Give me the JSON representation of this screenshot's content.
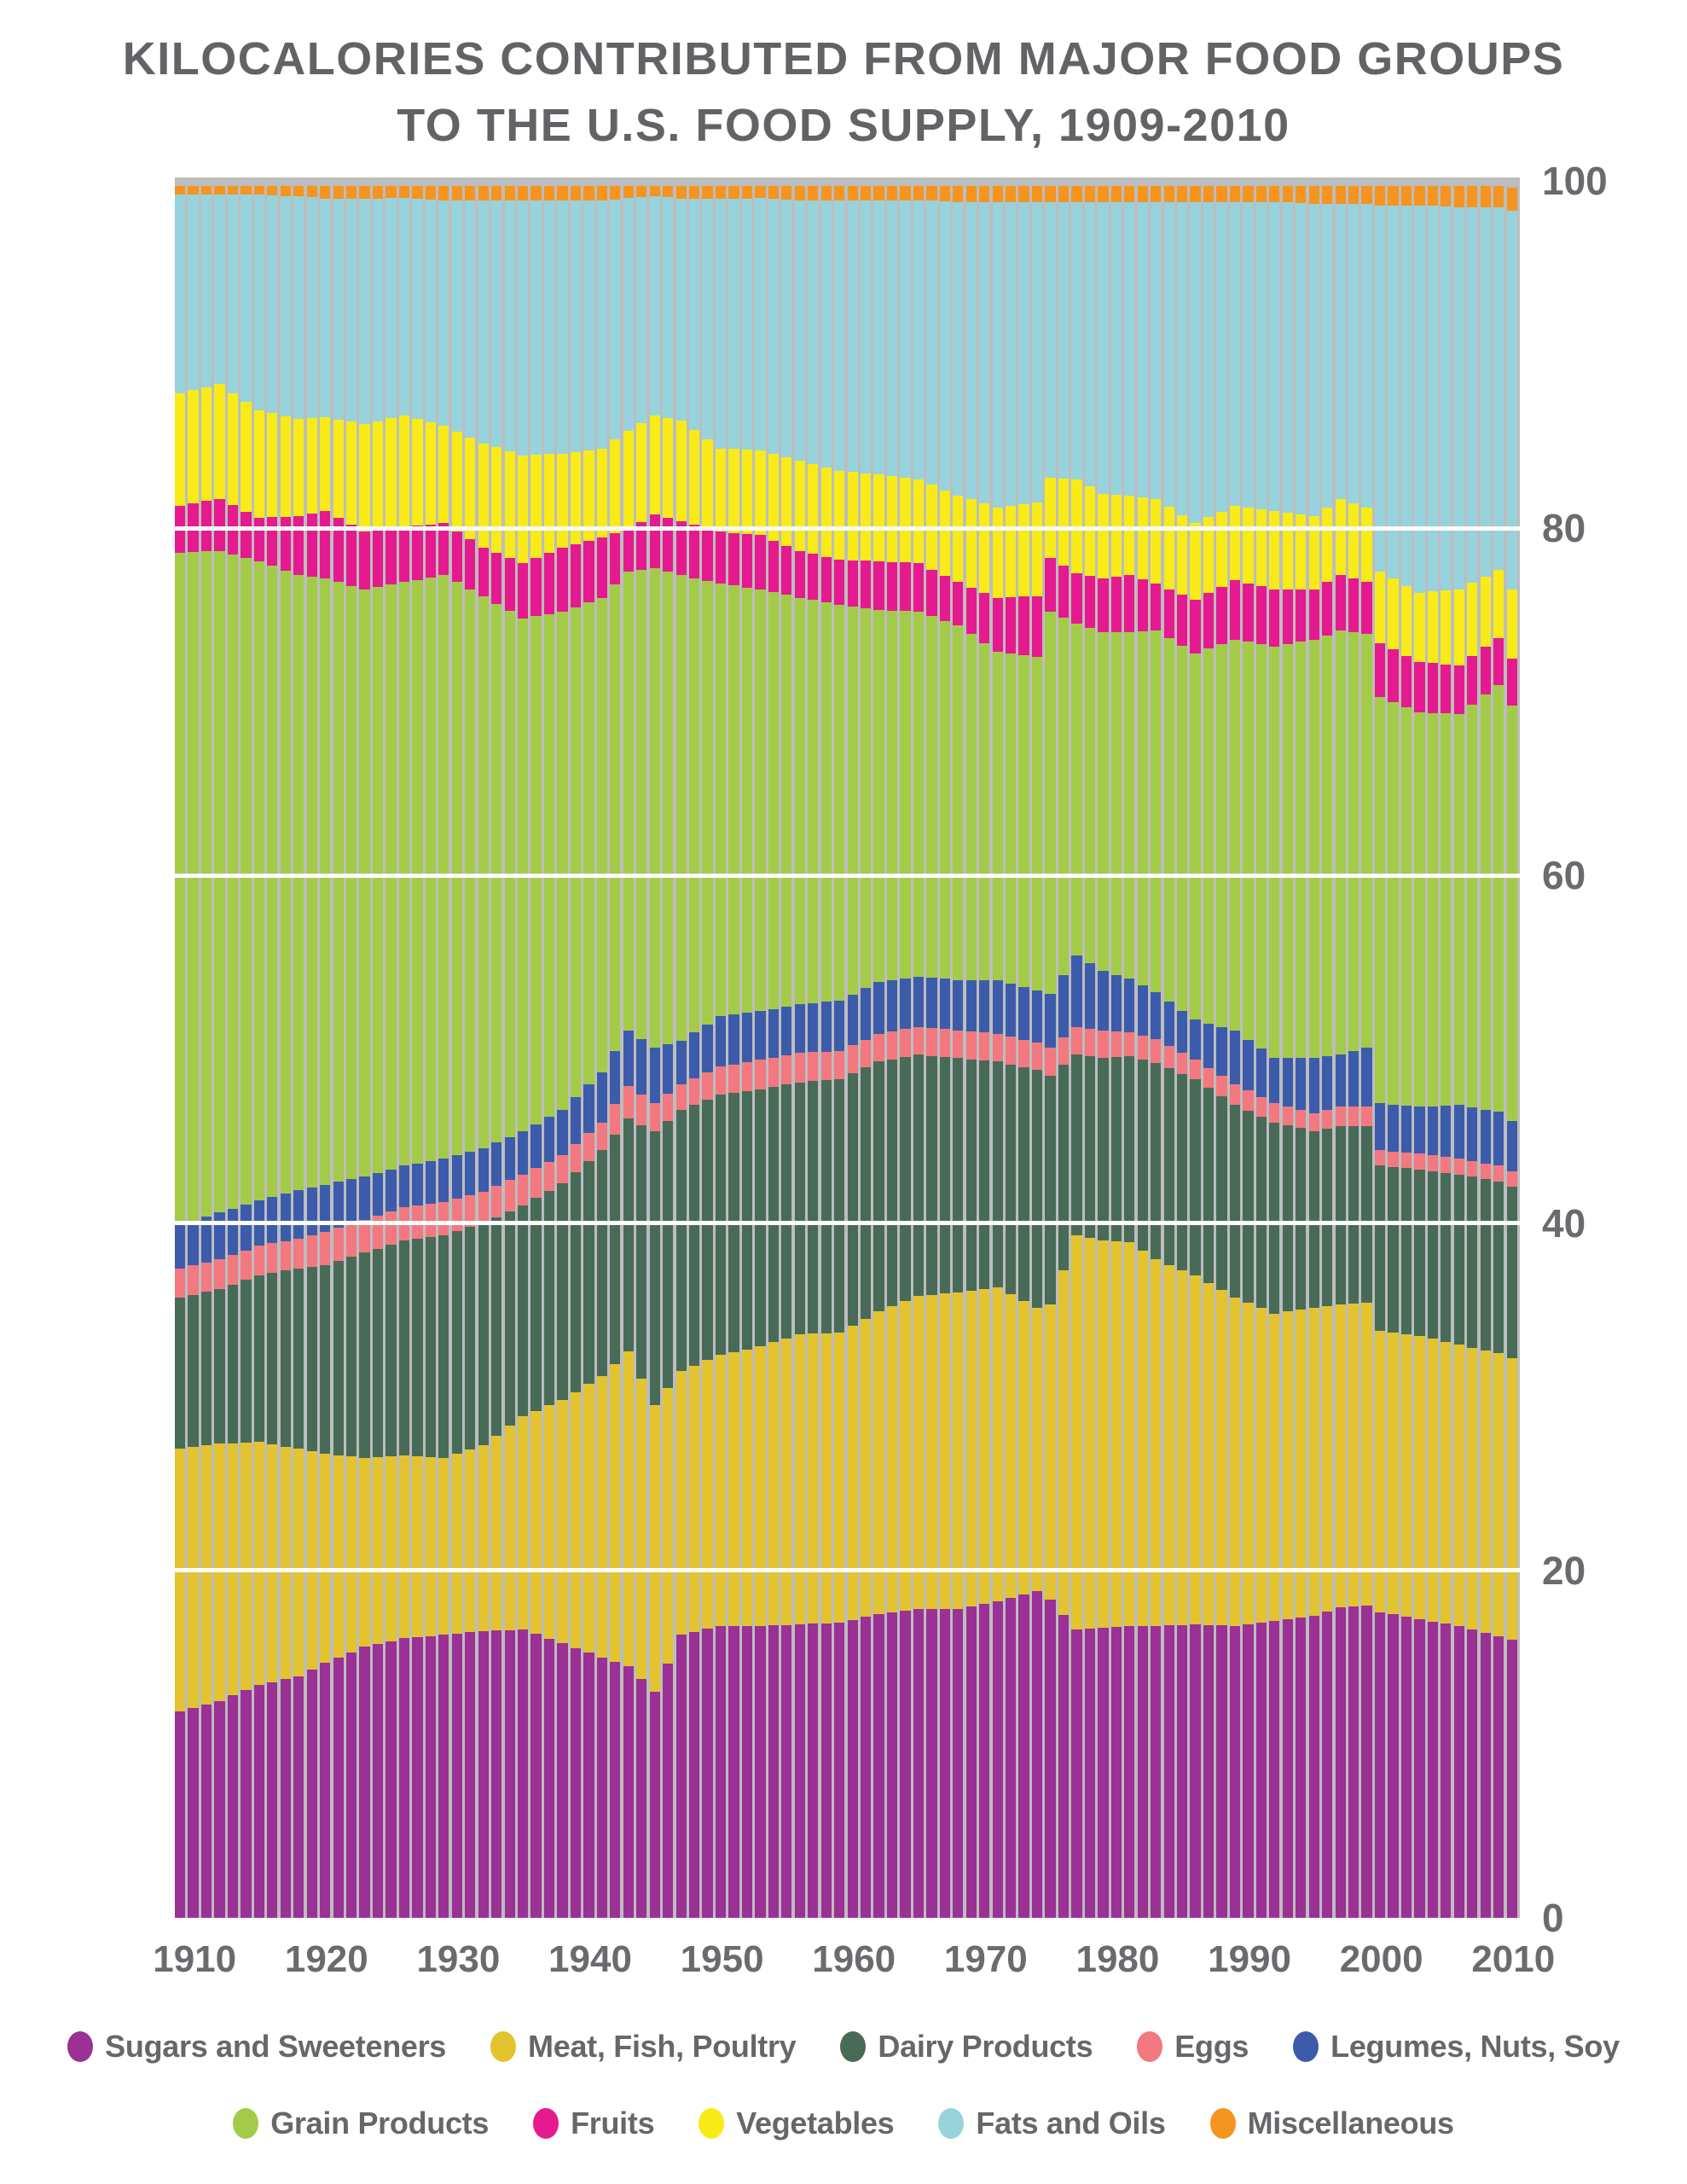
{
  "title": {
    "line1": "KILOCALORIES CONTRIBUTED FROM MAJOR FOOD GROUPS",
    "line2": "TO THE U.S. FOOD SUPPLY, 1909-2010"
  },
  "colors": {
    "plot_background": "#bcbdbf",
    "gridline": "#ffffff",
    "title_text": "#626366",
    "axis_text": "#6a6b6e",
    "legend_text": "#66676a"
  },
  "chart_data": {
    "type": "bar",
    "variant": "100-percent-stacked-yearly-bars",
    "title": "KILOCALORIES CONTRIBUTED FROM MAJOR FOOD GROUPS TO THE U.S. FOOD SUPPLY, 1909-2010",
    "xlabel": "",
    "ylabel": "",
    "x_range": [
      1909,
      2010
    ],
    "x_tick_years": [
      1910,
      1920,
      1930,
      1940,
      1950,
      1960,
      1970,
      1980,
      1990,
      2000,
      2010
    ],
    "y_ticks": [
      0,
      20,
      40,
      60,
      80,
      100
    ],
    "y_gridlines": [
      20,
      40,
      60,
      80
    ],
    "ylim": [
      0,
      100.2
    ],
    "legend_rows": [
      [
        0,
        1,
        2,
        3,
        4
      ],
      [
        5,
        6,
        7,
        8,
        9
      ]
    ],
    "keyframe_years": [
      1909,
      1912,
      1915,
      1918,
      1920,
      1923,
      1926,
      1929,
      1932,
      1935,
      1938,
      1941,
      1943,
      1945,
      1947,
      1950,
      1953,
      1956,
      1959,
      1962,
      1965,
      1968,
      1971,
      1974,
      1975,
      1977,
      1979,
      1981,
      1983,
      1986,
      1989,
      1992,
      1995,
      1997,
      1999,
      2000,
      2003,
      2006,
      2009,
      2010
    ],
    "series": [
      {
        "name": "Sugars and Sweeteners",
        "color": "#9b3095",
        "keyframe_values": [
          11.9,
          12.5,
          13.4,
          13.9,
          14.7,
          15.6,
          16.1,
          16.3,
          16.5,
          16.6,
          15.8,
          15.0,
          14.5,
          13.0,
          16.3,
          16.8,
          16.8,
          16.9,
          17.0,
          17.5,
          17.8,
          17.8,
          18.2,
          18.8,
          18.3,
          16.6,
          16.7,
          16.8,
          16.8,
          16.9,
          16.8,
          17.1,
          17.4,
          17.9,
          18.0,
          17.6,
          17.2,
          16.8,
          16.2,
          16.0
        ]
      },
      {
        "name": "Meat, Fish, Poultry",
        "color": "#e3c32e",
        "keyframe_values": [
          15.1,
          14.8,
          14.0,
          13.1,
          12.0,
          10.9,
          10.5,
          10.2,
          10.7,
          12.3,
          14.0,
          16.2,
          18.1,
          16.5,
          15.2,
          15.6,
          16.1,
          16.7,
          16.7,
          17.4,
          18.0,
          18.2,
          18.1,
          16.3,
          17.0,
          22.7,
          22.3,
          22.1,
          21.1,
          20.1,
          18.9,
          17.7,
          17.7,
          17.4,
          17.4,
          16.2,
          16.3,
          16.2,
          16.3,
          16.2
        ]
      },
      {
        "name": "Dairy Products",
        "color": "#486b57",
        "keyframe_values": [
          8.7,
          8.9,
          9.6,
          10.4,
          10.9,
          11.8,
          12.4,
          12.8,
          12.8,
          12.1,
          12.5,
          13.0,
          13.4,
          15.8,
          15.0,
          15.0,
          14.8,
          14.5,
          14.6,
          14.4,
          13.9,
          13.5,
          13.0,
          13.7,
          13.2,
          10.4,
          10.5,
          10.7,
          11.3,
          11.3,
          11.1,
          11.0,
          10.2,
          10.3,
          10.2,
          9.5,
          9.6,
          9.8,
          9.9,
          9.9
        ]
      },
      {
        "name": "Eggs",
        "color": "#f3787f",
        "keyframe_values": [
          1.7,
          1.7,
          1.7,
          1.7,
          1.9,
          1.9,
          1.9,
          1.9,
          1.8,
          1.8,
          1.6,
          1.6,
          1.9,
          1.6,
          1.5,
          1.6,
          1.7,
          1.7,
          1.6,
          1.6,
          1.6,
          1.6,
          1.6,
          1.6,
          1.6,
          1.6,
          1.6,
          1.4,
          1.4,
          1.1,
          1.2,
          1.1,
          1.0,
          1.1,
          1.1,
          0.9,
          0.9,
          0.9,
          0.9,
          0.9
        ]
      },
      {
        "name": "Legumes, Nuts, Soy",
        "color": "#3c5cab",
        "keyframe_values": [
          2.5,
          2.7,
          2.6,
          2.8,
          2.7,
          2.5,
          2.4,
          2.5,
          2.5,
          2.5,
          2.6,
          2.9,
          3.2,
          3.2,
          2.5,
          2.9,
          2.8,
          2.8,
          2.9,
          3.0,
          2.9,
          2.9,
          3.1,
          3.0,
          3.1,
          4.1,
          3.4,
          3.1,
          2.7,
          2.3,
          3.1,
          2.6,
          3.2,
          3.0,
          3.4,
          2.7,
          2.7,
          3.1,
          3.1,
          2.9
        ]
      },
      {
        "name": "Grain Products",
        "color": "#a3cb48",
        "keyframe_values": [
          38.7,
          38.1,
          36.8,
          35.4,
          34.9,
          33.8,
          33.6,
          33.6,
          31.8,
          29.5,
          28.7,
          27.3,
          26.4,
          27.6,
          26.8,
          24.9,
          24.3,
          23.4,
          22.8,
          21.4,
          21.0,
          20.4,
          18.9,
          19.2,
          22.0,
          19.1,
          19.5,
          19.9,
          20.8,
          21.1,
          22.5,
          23.7,
          24.1,
          24.4,
          23.8,
          23.4,
          22.7,
          22.5,
          24.6,
          23.9
        ]
      },
      {
        "name": "Fruits",
        "color": "#e51a8e",
        "keyframe_values": [
          2.7,
          3.0,
          2.5,
          3.4,
          3.9,
          3.3,
          3.2,
          3.0,
          2.8,
          3.2,
          3.7,
          3.5,
          2.4,
          3.1,
          3.1,
          3.0,
          3.1,
          2.7,
          2.6,
          2.8,
          2.8,
          2.5,
          3.1,
          3.5,
          3.1,
          2.9,
          3.1,
          3.3,
          2.7,
          3.1,
          3.4,
          3.3,
          2.9,
          3.2,
          3.0,
          3.1,
          2.9,
          2.8,
          2.7,
          2.7
        ]
      },
      {
        "name": "Vegetables",
        "color": "#f8eb18",
        "keyframe_values": [
          6.5,
          6.6,
          6.2,
          5.6,
          5.4,
          6.2,
          6.4,
          5.6,
          6.0,
          6.2,
          5.4,
          5.1,
          5.7,
          5.7,
          5.8,
          4.8,
          4.9,
          5.2,
          5.1,
          5.0,
          4.8,
          5.0,
          5.2,
          5.4,
          4.6,
          5.4,
          4.9,
          4.6,
          4.9,
          4.4,
          4.3,
          4.5,
          4.2,
          4.4,
          4.3,
          4.1,
          4.0,
          4.4,
          3.9,
          4.0
        ]
      },
      {
        "name": "Fats and Oils",
        "color": "#97d3dc",
        "keyframe_values": [
          11.4,
          10.9,
          12.4,
          12.8,
          12.6,
          13.0,
          12.5,
          13.0,
          14.0,
          14.7,
          14.6,
          14.3,
          13.4,
          12.6,
          12.8,
          14.4,
          14.5,
          15.0,
          15.6,
          15.8,
          16.1,
          16.9,
          17.6,
          17.3,
          15.9,
          16.0,
          16.8,
          16.9,
          17.1,
          18.5,
          17.5,
          17.8,
          18.0,
          17.0,
          17.5,
          21.1,
          22.3,
          22.0,
          20.9,
          21.8
        ]
      },
      {
        "name": "Miscellaneous",
        "color": "#f5941f",
        "keyframe_values": [
          0.5,
          0.5,
          0.5,
          0.6,
          0.7,
          0.7,
          0.7,
          0.8,
          0.8,
          0.8,
          0.8,
          0.8,
          0.7,
          0.6,
          0.7,
          0.7,
          0.7,
          0.8,
          0.8,
          0.8,
          0.8,
          0.9,
          0.9,
          0.9,
          0.9,
          0.9,
          0.9,
          0.9,
          0.9,
          0.9,
          0.9,
          0.9,
          1.0,
          1.0,
          1.0,
          1.1,
          1.1,
          1.2,
          1.2,
          1.3
        ]
      }
    ]
  }
}
